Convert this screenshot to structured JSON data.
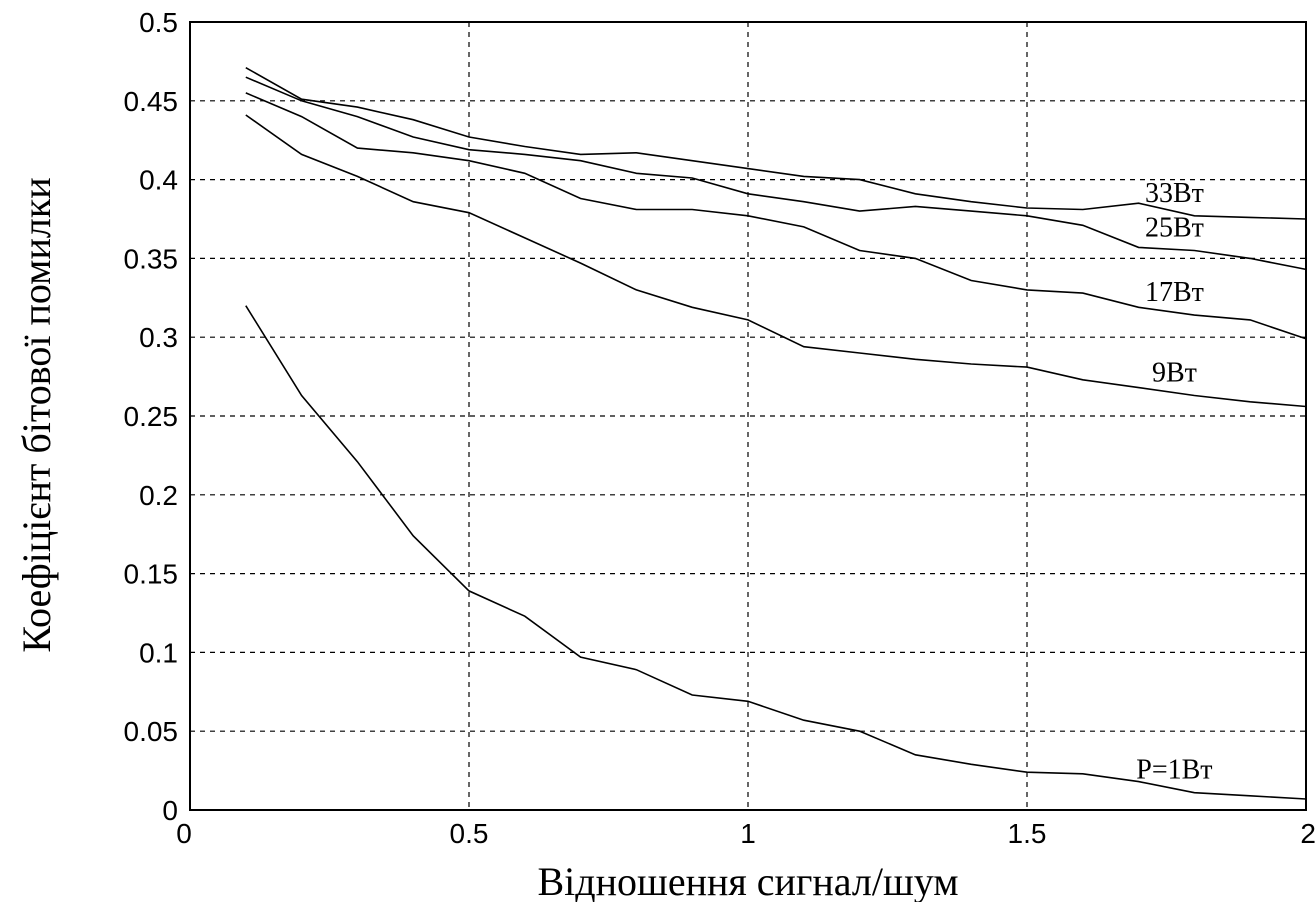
{
  "chart_data": {
    "type": "line",
    "title": "",
    "xlabel": "Відношення сигнал/шум",
    "ylabel": "Коефіцієнт бітової помилки",
    "xlim": [
      0,
      2
    ],
    "ylim": [
      0,
      0.5
    ],
    "xticks": [
      "0",
      "0.5",
      "1",
      "1.5",
      "2"
    ],
    "yticks": [
      "0",
      "0.05",
      "0.1",
      "0.15",
      "0.2",
      "0.25",
      "0.3",
      "0.35",
      "0.4",
      "0.45",
      "0.5"
    ],
    "grid": true,
    "x": [
      0.1,
      0.2,
      0.3,
      0.4,
      0.5,
      0.6,
      0.7,
      0.8,
      0.9,
      1.0,
      1.1,
      1.2,
      1.3,
      1.4,
      1.5,
      1.6,
      1.7,
      1.8,
      1.9,
      2.0
    ],
    "series": [
      {
        "name": "33Вт",
        "values": [
          0.471,
          0.451,
          0.446,
          0.438,
          0.427,
          0.421,
          0.416,
          0.417,
          0.412,
          0.407,
          0.402,
          0.4,
          0.391,
          0.386,
          0.382,
          0.381,
          0.385,
          0.377,
          0.376,
          0.375
        ]
      },
      {
        "name": "25Вт",
        "values": [
          0.465,
          0.45,
          0.44,
          0.427,
          0.419,
          0.416,
          0.412,
          0.404,
          0.401,
          0.391,
          0.386,
          0.38,
          0.383,
          0.38,
          0.377,
          0.371,
          0.357,
          0.355,
          0.35,
          0.343
        ]
      },
      {
        "name": "17Вт",
        "values": [
          0.455,
          0.44,
          0.42,
          0.417,
          0.412,
          0.404,
          0.388,
          0.381,
          0.381,
          0.377,
          0.37,
          0.355,
          0.35,
          0.336,
          0.33,
          0.328,
          0.319,
          0.314,
          0.311,
          0.299
        ]
      },
      {
        "name": "9Вт",
        "values": [
          0.441,
          0.416,
          0.402,
          0.386,
          0.379,
          0.363,
          0.347,
          0.33,
          0.319,
          0.311,
          0.294,
          0.29,
          0.286,
          0.283,
          0.281,
          0.273,
          0.268,
          0.263,
          0.259,
          0.256
        ]
      },
      {
        "name": "P=1Вт",
        "values": [
          0.32,
          0.263,
          0.221,
          0.174,
          0.139,
          0.123,
          0.097,
          0.089,
          0.073,
          0.069,
          0.057,
          0.05,
          0.035,
          0.029,
          0.024,
          0.023,
          0.018,
          0.011,
          0.009,
          0.007
        ]
      }
    ]
  }
}
